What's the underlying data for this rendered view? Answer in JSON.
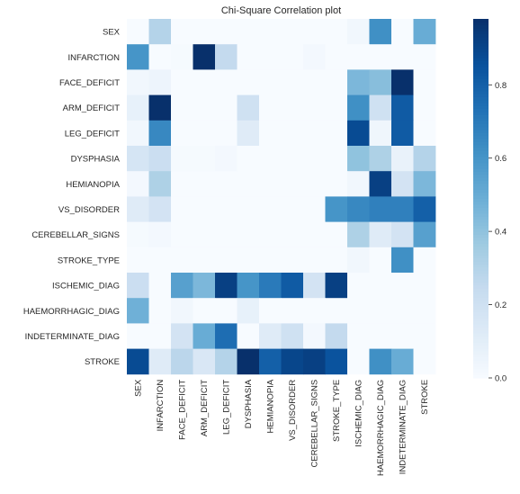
{
  "chart_data": {
    "type": "heatmap",
    "title": "Chi-Square Correlation plot",
    "xlabel": "",
    "ylabel": "",
    "rows": [
      "SEX",
      "INFARCTION",
      "FACE_DEFICIT",
      "ARM_DEFICIT",
      "LEG_DEFICIT",
      "DYSPHASIA",
      "HEMIANOPIA",
      "VS_DISORDER",
      "CEREBELLAR_SIGNS",
      "STROKE_TYPE",
      "ISCHEMIC_DIAG",
      "HAEMORRHAGIC_DIAG",
      "INDETERMINATE_DIAG",
      "STROKE"
    ],
    "columns": [
      "SEX",
      "INFARCTION",
      "FACE_DEFICIT",
      "ARM_DEFICIT",
      "LEG_DEFICIT",
      "DYSPHASIA",
      "HEMIANOPIA",
      "VS_DISORDER",
      "CEREBELLAR_SIGNS",
      "STROKE_TYPE",
      "ISCHEMIC_DIAG",
      "HAEMORRHAGIC_DIAG",
      "INDETERMINATE_DIAG",
      "STROKE"
    ],
    "values": [
      [
        0.0,
        0.3,
        0.0,
        0.0,
        0.0,
        0.0,
        0.0,
        0.0,
        0.0,
        0.0,
        0.03,
        0.62,
        0.0,
        0.5
      ],
      [
        0.6,
        0.0,
        0.01,
        0.98,
        0.25,
        0.0,
        0.0,
        0.0,
        0.02,
        0.0,
        0.0,
        0.0,
        0.0,
        0.0
      ],
      [
        0.03,
        0.05,
        0.0,
        0.0,
        0.0,
        0.0,
        0.0,
        0.0,
        0.0,
        0.0,
        0.45,
        0.42,
        0.98,
        0.0
      ],
      [
        0.08,
        0.98,
        0.0,
        0.0,
        0.0,
        0.2,
        0.0,
        0.0,
        0.0,
        0.0,
        0.62,
        0.2,
        0.82,
        0.0
      ],
      [
        0.03,
        0.65,
        0.0,
        0.0,
        0.0,
        0.12,
        0.0,
        0.0,
        0.0,
        0.0,
        0.88,
        0.04,
        0.82,
        0.0
      ],
      [
        0.17,
        0.22,
        0.01,
        0.01,
        0.02,
        0.0,
        0.0,
        0.0,
        0.0,
        0.0,
        0.4,
        0.32,
        0.07,
        0.3
      ],
      [
        0.02,
        0.32,
        0.0,
        0.0,
        0.0,
        0.0,
        0.0,
        0.0,
        0.0,
        0.0,
        0.03,
        0.92,
        0.18,
        0.45
      ],
      [
        0.12,
        0.18,
        0.0,
        0.0,
        0.0,
        0.0,
        0.0,
        0.0,
        0.0,
        0.6,
        0.65,
        0.68,
        0.68,
        0.8
      ],
      [
        0.01,
        0.02,
        0.0,
        0.0,
        0.0,
        0.0,
        0.0,
        0.0,
        0.0,
        0.0,
        0.32,
        0.12,
        0.18,
        0.55
      ],
      [
        0.0,
        0.0,
        0.0,
        0.0,
        0.0,
        0.0,
        0.0,
        0.0,
        0.0,
        0.0,
        0.03,
        0.0,
        0.62,
        0.0
      ],
      [
        0.22,
        0.0,
        0.55,
        0.45,
        0.92,
        0.6,
        0.7,
        0.82,
        0.18,
        0.92,
        0.0,
        0.0,
        0.0,
        0.0
      ],
      [
        0.48,
        0.0,
        0.03,
        0.0,
        0.0,
        0.08,
        0.0,
        0.0,
        0.0,
        0.0,
        0.0,
        0.0,
        0.0,
        0.0
      ],
      [
        0.0,
        0.0,
        0.18,
        0.5,
        0.75,
        0.0,
        0.12,
        0.2,
        0.02,
        0.25,
        0.0,
        0.0,
        0.0,
        0.0
      ],
      [
        0.88,
        0.12,
        0.28,
        0.15,
        0.3,
        0.98,
        0.8,
        0.9,
        0.92,
        0.85,
        0.0,
        0.62,
        0.5,
        0.0
      ]
    ],
    "colorbar": {
      "min": 0.0,
      "max": 0.98,
      "ticks": [
        "0.0",
        "0.2",
        "0.4",
        "0.6",
        "0.8"
      ],
      "tick_values": [
        0.0,
        0.2,
        0.4,
        0.6,
        0.8
      ]
    },
    "colormap": "Blues",
    "colors": {
      "low": "#f7fbff",
      "high": "#08306b"
    },
    "grid": false,
    "legend": "colorbar-right"
  }
}
